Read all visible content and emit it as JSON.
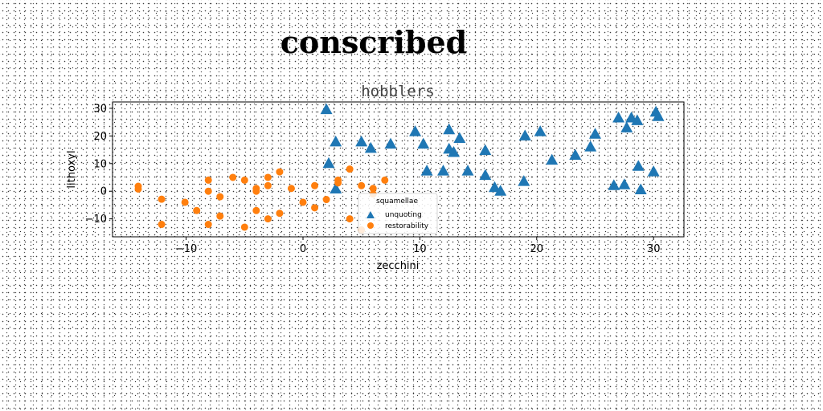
{
  "figure_title": "conscribed",
  "colors": {
    "unquoting": "#1f77b4",
    "restorability": "#ff7f0e"
  },
  "chart_data": {
    "type": "scatter",
    "title": "hobblers",
    "xlabel": "zecchini",
    "ylabel": "lithoxyl",
    "xlim": [
      -16.3,
      32.6
    ],
    "ylim": [
      -16.5,
      32.3
    ],
    "xticks": [
      -10,
      0,
      10,
      20,
      30
    ],
    "xtick_labels": [
      "−10",
      "0",
      "10",
      "20",
      "30"
    ],
    "yticks": [
      -10,
      0,
      10,
      20,
      30
    ],
    "ytick_labels": [
      "−10",
      "0",
      "10",
      "20",
      "30"
    ],
    "grid": false,
    "legend": {
      "title": "squamellae",
      "placement": "lower-center"
    },
    "series": [
      {
        "name": "unquoting",
        "marker": "triangle",
        "color": "#1f77b4",
        "points": [
          [
            2.0,
            29.5
          ],
          [
            2.2,
            10.0
          ],
          [
            2.8,
            17.8
          ],
          [
            2.8,
            0.8
          ],
          [
            5.0,
            17.8
          ],
          [
            5.8,
            15.5
          ],
          [
            7.5,
            17.0
          ],
          [
            9.6,
            21.5
          ],
          [
            10.3,
            17.0
          ],
          [
            10.6,
            7.3
          ],
          [
            12.0,
            7.3
          ],
          [
            12.5,
            22.2
          ],
          [
            12.5,
            15.2
          ],
          [
            12.9,
            14.0
          ],
          [
            13.4,
            19.1
          ],
          [
            14.1,
            7.3
          ],
          [
            15.6,
            14.7
          ],
          [
            15.6,
            5.7
          ],
          [
            16.4,
            1.3
          ],
          [
            16.9,
            0.0
          ],
          [
            18.9,
            3.5
          ],
          [
            19.0,
            20.0
          ],
          [
            20.3,
            21.5
          ],
          [
            21.3,
            11.2
          ],
          [
            23.3,
            13.0
          ],
          [
            24.6,
            16.0
          ],
          [
            25.0,
            20.6
          ],
          [
            26.6,
            2.0
          ],
          [
            27.0,
            26.5
          ],
          [
            27.5,
            2.3
          ],
          [
            27.7,
            22.9
          ],
          [
            28.1,
            26.5
          ],
          [
            28.6,
            25.5
          ],
          [
            28.7,
            9.0
          ],
          [
            28.9,
            0.5
          ],
          [
            30.0,
            7.0
          ],
          [
            30.2,
            28.6
          ],
          [
            30.4,
            27.0
          ]
        ]
      },
      {
        "name": "restorability",
        "marker": "circle",
        "color": "#ff7f0e",
        "points": [
          [
            -14.1,
            1.8
          ],
          [
            -14.1,
            0.8
          ],
          [
            -12.1,
            -2.9
          ],
          [
            -12.1,
            -12.0
          ],
          [
            -10.1,
            -4.0
          ],
          [
            -9.1,
            -7.0
          ],
          [
            -8.1,
            4.0
          ],
          [
            -8.1,
            0.0
          ],
          [
            -8.1,
            -12.0
          ],
          [
            -7.1,
            -2.0
          ],
          [
            -7.1,
            -9.0
          ],
          [
            -6.0,
            5.0
          ],
          [
            -5.0,
            4.0
          ],
          [
            -5.0,
            -13.0
          ],
          [
            -4.0,
            1.0
          ],
          [
            -4.0,
            0.0
          ],
          [
            -4.0,
            -7.0
          ],
          [
            -3.0,
            5.0
          ],
          [
            -3.0,
            2.0
          ],
          [
            -3.0,
            -10.0
          ],
          [
            -2.0,
            7.0
          ],
          [
            -2.0,
            -8.0
          ],
          [
            -1.0,
            1.0
          ],
          [
            0.0,
            -4.0
          ],
          [
            1.0,
            2.0
          ],
          [
            1.0,
            -6.0
          ],
          [
            2.0,
            -3.0
          ],
          [
            3.0,
            4.0
          ],
          [
            3.0,
            3.0
          ],
          [
            4.0,
            8.0
          ],
          [
            4.0,
            -10.0
          ],
          [
            5.0,
            2.0
          ],
          [
            5.0,
            -14.0
          ],
          [
            6.0,
            1.0
          ],
          [
            6.0,
            -1.0
          ],
          [
            7.0,
            4.0
          ]
        ]
      }
    ]
  }
}
